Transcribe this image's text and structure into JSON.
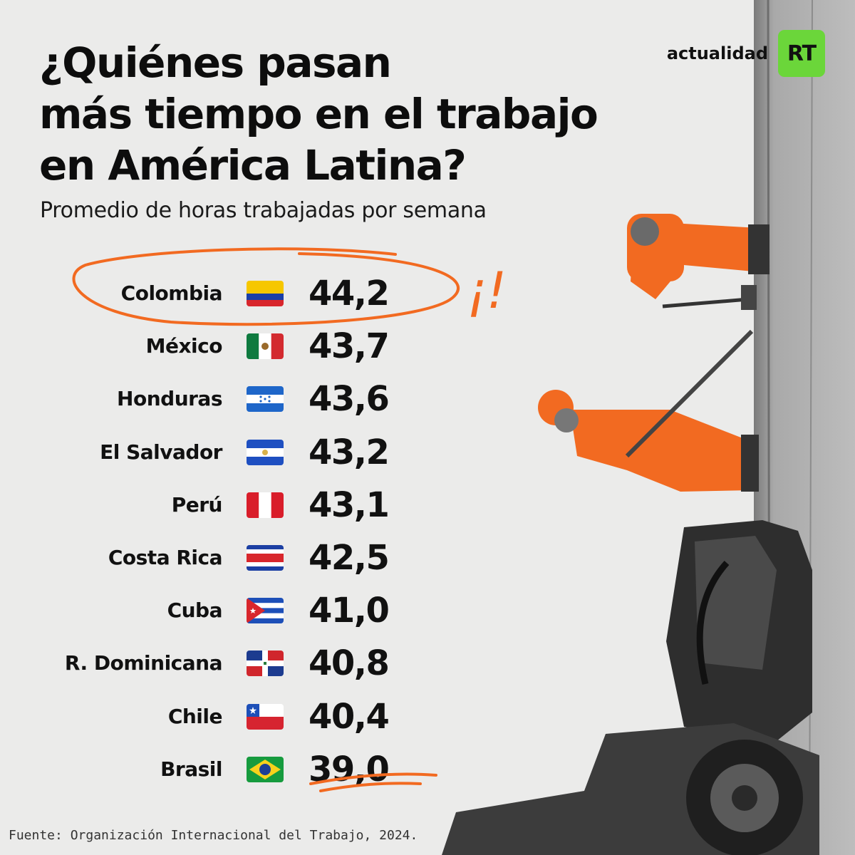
{
  "brand": {
    "wordmark": "actualidad",
    "logo_text": "RT"
  },
  "colors": {
    "accent": "#f26a21",
    "logo_green": "#6bd63a",
    "background": "#ebebea"
  },
  "chart_data": {
    "type": "table",
    "title_lines": [
      "¿Quiénes pasan",
      "más tiempo en el trabajo",
      "en América Latina?"
    ],
    "subtitle": "Promedio de horas trabajadas por semana",
    "highlight_mark": "¡!",
    "rows": [
      {
        "country": "Colombia",
        "flag": "colombia-flag-icon",
        "value": "44,2"
      },
      {
        "country": "México",
        "flag": "mexico-flag-icon",
        "value": "43,7"
      },
      {
        "country": "Honduras",
        "flag": "honduras-flag-icon",
        "value": "43,6"
      },
      {
        "country": "El Salvador",
        "flag": "el-salvador-flag-icon",
        "value": "43,2"
      },
      {
        "country": "Perú",
        "flag": "peru-flag-icon",
        "value": "43,1"
      },
      {
        "country": "Costa Rica",
        "flag": "costa-rica-flag-icon",
        "value": "42,5"
      },
      {
        "country": "Cuba",
        "flag": "cuba-flag-icon",
        "value": "41,0"
      },
      {
        "country": "R. Dominicana",
        "flag": "dominican-republic-flag-icon",
        "value": "40,8"
      },
      {
        "country": "Chile",
        "flag": "chile-flag-icon",
        "value": "40,4"
      },
      {
        "country": "Brasil",
        "flag": "brazil-flag-icon",
        "value": "39,0"
      }
    ],
    "source": "Fuente: Organización Internacional del Trabajo, 2024."
  }
}
